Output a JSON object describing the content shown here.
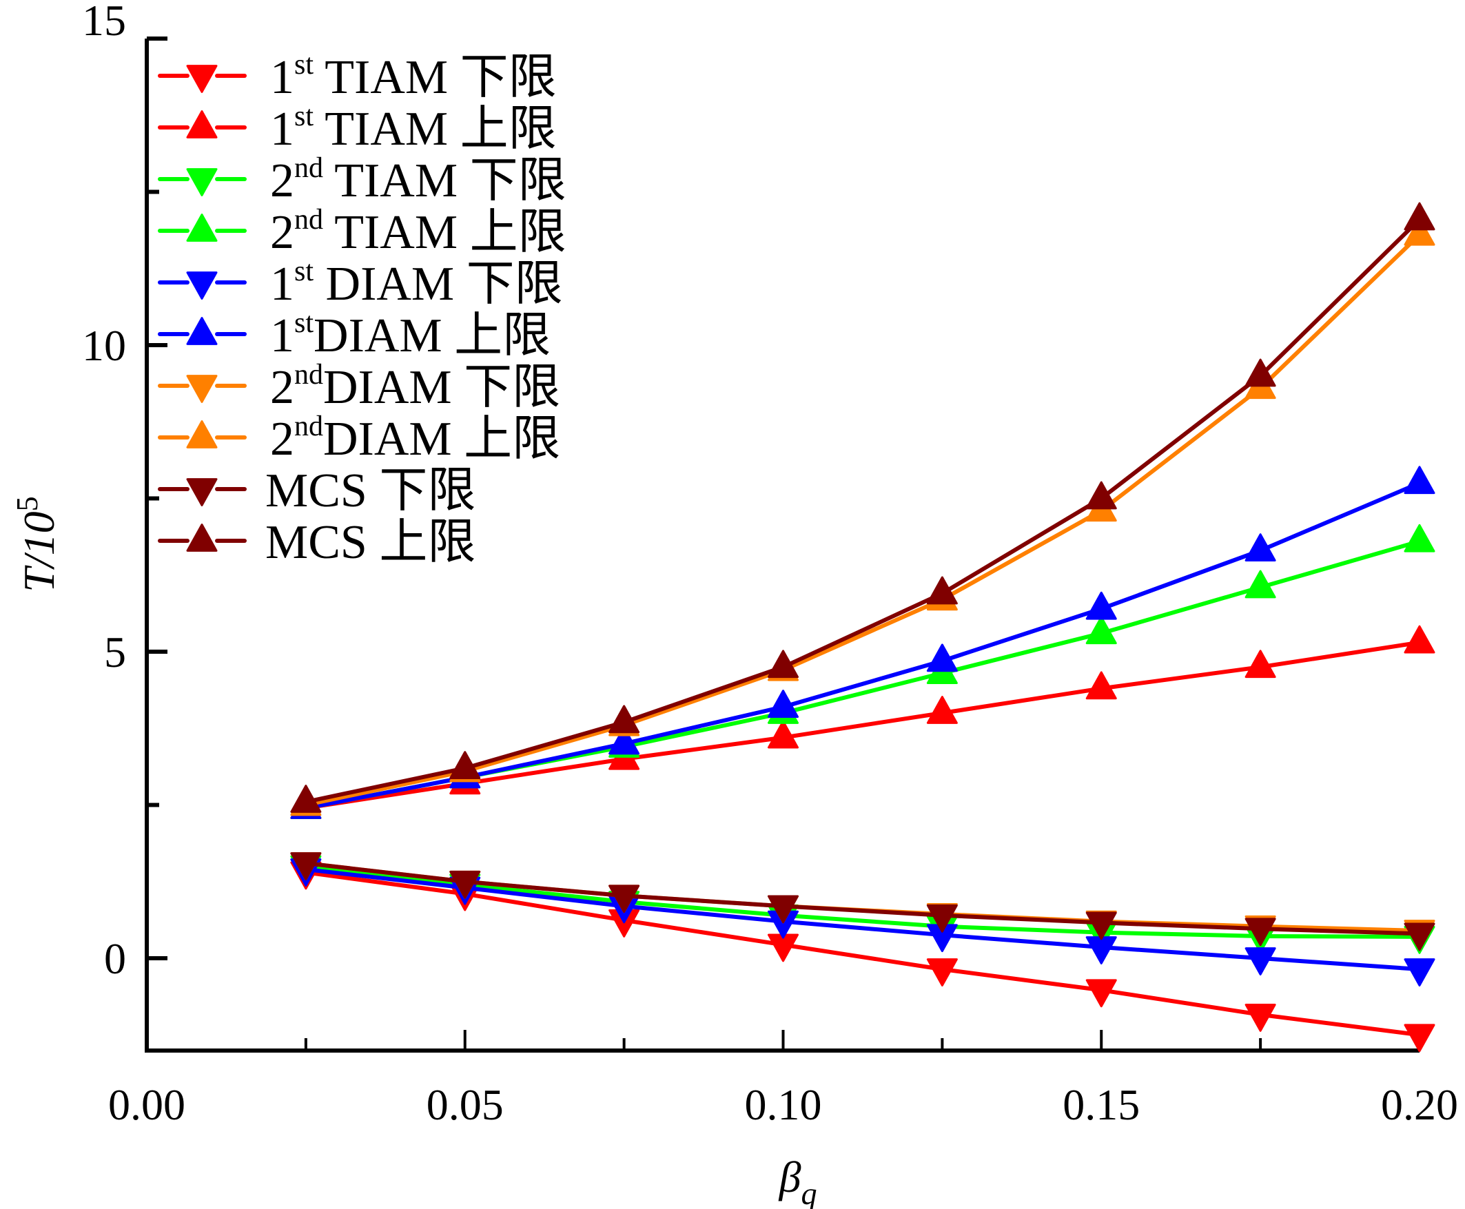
{
  "chart_data": {
    "type": "line",
    "title": "",
    "xlabel": "β",
    "xlabel_subscript": "q",
    "ylabel": "T/10",
    "ylabel_superscript": "5",
    "xlim": [
      0.0,
      0.2
    ],
    "ylim": [
      -1.5,
      15
    ],
    "x_ticks": [
      0.0,
      0.05,
      0.1,
      0.15,
      0.2
    ],
    "x_tick_labels": [
      "0.00",
      "0.05",
      "0.10",
      "0.15",
      "0.20"
    ],
    "x_minor_ticks": [
      0.025,
      0.075,
      0.125,
      0.175
    ],
    "y_ticks": [
      0,
      5,
      10,
      15
    ],
    "y_tick_labels": [
      "0",
      "5",
      "10",
      "15"
    ],
    "y_minor_ticks": [
      2.5,
      7.5,
      12.5
    ],
    "grid": false,
    "legend_position": "top-left",
    "x": [
      0.025,
      0.05,
      0.075,
      0.1,
      0.125,
      0.15,
      0.175,
      0.2
    ],
    "series": [
      {
        "name": "1st TIAM 下限",
        "prefix": "1",
        "sup": "st",
        "rest": " TIAM 下限",
        "color": "#ff0000",
        "marker": "down",
        "values": [
          1.4,
          1.05,
          0.62,
          0.22,
          -0.18,
          -0.52,
          -0.92,
          -1.25
        ]
      },
      {
        "name": "1st TIAM 上限",
        "prefix": "1",
        "sup": "st",
        "rest": " TIAM 上限",
        "color": "#ff0000",
        "marker": "up",
        "values": [
          2.45,
          2.85,
          3.25,
          3.6,
          4.0,
          4.4,
          4.75,
          5.15
        ]
      },
      {
        "name": "2nd TIAM 下限",
        "prefix": "2",
        "sup": "nd",
        "rest": " TIAM 下限",
        "color": "#00ff00",
        "marker": "down",
        "values": [
          1.5,
          1.2,
          0.92,
          0.7,
          0.52,
          0.42,
          0.36,
          0.35
        ]
      },
      {
        "name": "2nd TIAM 上限",
        "prefix": "2",
        "sup": "nd",
        "rest": " TIAM 上限",
        "color": "#00ff00",
        "marker": "up",
        "values": [
          2.45,
          2.95,
          3.45,
          4.0,
          4.65,
          5.3,
          6.05,
          6.8
        ]
      },
      {
        "name": "1st DIAM 下限",
        "prefix": "1",
        "sup": "st",
        "rest": " DIAM 下限",
        "color": "#0000ff",
        "marker": "down",
        "values": [
          1.45,
          1.15,
          0.85,
          0.6,
          0.38,
          0.18,
          0.0,
          -0.18
        ]
      },
      {
        "name": "1st DIAM 上限",
        "prefix": "1",
        "sup": "st",
        "rest": "DIAM 上限",
        "color": "#0000ff",
        "marker": "up",
        "values": [
          2.45,
          2.95,
          3.5,
          4.1,
          4.85,
          5.7,
          6.65,
          7.75
        ]
      },
      {
        "name": "2nd DIAM 下限",
        "prefix": "2",
        "sup": "nd",
        "rest": "DIAM 下限",
        "color": "#ff8000",
        "marker": "down",
        "values": [
          1.55,
          1.25,
          1.02,
          0.85,
          0.72,
          0.6,
          0.52,
          0.45
        ]
      },
      {
        "name": "2nd DIAM 上限",
        "prefix": "2",
        "sup": "nd",
        "rest": "DIAM 上限",
        "color": "#ff8000",
        "marker": "up",
        "values": [
          2.5,
          3.05,
          3.8,
          4.7,
          5.85,
          7.3,
          9.3,
          11.8
        ]
      },
      {
        "name": "MCS 下限",
        "prefix": "MCS 下限",
        "sup": "",
        "rest": "",
        "color": "#800000",
        "marker": "down",
        "values": [
          1.55,
          1.25,
          1.02,
          0.85,
          0.7,
          0.58,
          0.48,
          0.4
        ]
      },
      {
        "name": "MCS  上限",
        "prefix": "MCS  上限",
        "sup": "",
        "rest": "",
        "color": "#800000",
        "marker": "up",
        "values": [
          2.55,
          3.1,
          3.85,
          4.75,
          5.95,
          7.5,
          9.5,
          12.05
        ]
      }
    ]
  }
}
